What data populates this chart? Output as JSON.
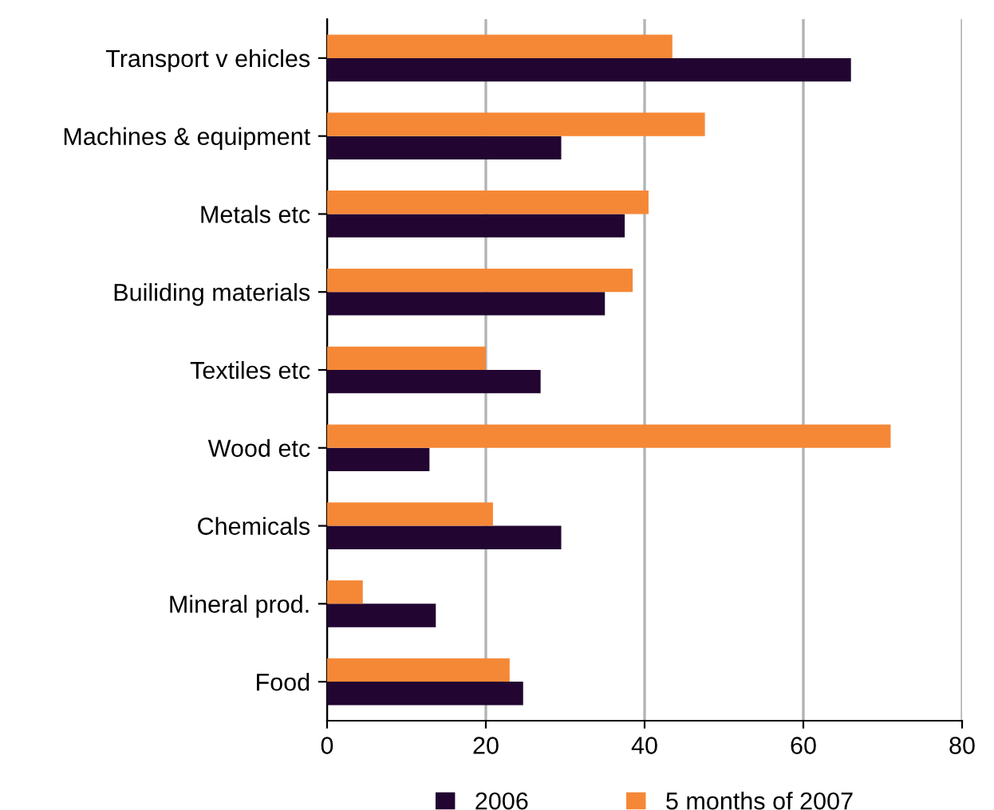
{
  "chart_data": {
    "type": "bar",
    "orientation": "horizontal",
    "categories": [
      "Transport v ehicles",
      "Machines & equipment",
      "Metals etc",
      "Builiding materials",
      "Textiles etc",
      "Wood etc",
      "Chemicals",
      "Mineral prod.",
      "Food"
    ],
    "series": [
      {
        "name": "2006",
        "color": "#220530",
        "values": [
          66,
          29.5,
          37.5,
          35,
          26.9,
          12.9,
          29.5,
          13.7,
          24.7
        ]
      },
      {
        "name": "5 months of 2007",
        "color": "#f58837",
        "values": [
          43.5,
          47.6,
          40.5,
          38.5,
          20,
          71,
          20.9,
          4.5,
          23
        ]
      }
    ],
    "xlim": [
      0,
      80
    ],
    "xticks": [
      0,
      20,
      40,
      60,
      80
    ],
    "grid": "x",
    "legend": "bottom"
  }
}
